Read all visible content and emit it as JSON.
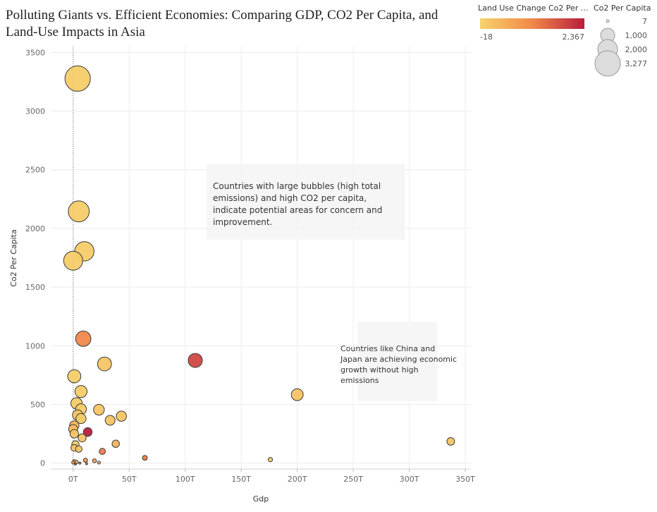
{
  "chart_data": {
    "type": "scatter",
    "title_lines": [
      "Polluting Giants vs. Efficient Economies: Comparing GDP, CO2 Per Capita, and",
      "Land-Use Impacts in Asia"
    ],
    "xlabel": "Gdp",
    "ylabel": "Co2 Per Capita",
    "xlim": [
      -20,
      355
    ],
    "ylim": [
      -50,
      3550
    ],
    "x_ticks": [
      0,
      50,
      100,
      150,
      200,
      250,
      300,
      350
    ],
    "x_tick_labels": [
      "0T",
      "50T",
      "100T",
      "150T",
      "200T",
      "250T",
      "300T",
      "350T"
    ],
    "y_ticks": [
      0,
      500,
      1000,
      1500,
      2000,
      2500,
      3000,
      3500
    ],
    "y_tick_labels": [
      "0",
      "500",
      "1000",
      "1500",
      "2000",
      "2500",
      "3000",
      "3500"
    ],
    "grid": true,
    "reference_line_x": 0,
    "color_legend": {
      "title": "Land Use Change Co2 Per ...",
      "min_label": "-18",
      "max_label": "2,367",
      "min_color": "#f6d36b",
      "mid_color": "#f1884a",
      "max_color": "#b81d3c"
    },
    "size_legend": {
      "title": "Co2 Per Capita",
      "labels": [
        "7",
        "1,000",
        "2,000",
        "3,277"
      ],
      "values": [
        7,
        1000,
        2000,
        3277
      ]
    },
    "points": [
      {
        "x": 4,
        "y": 3277,
        "c": 0.05
      },
      {
        "x": 5,
        "y": 2145,
        "c": 0.05
      },
      {
        "x": 10,
        "y": 1805,
        "c": 0.05
      },
      {
        "x": 0,
        "y": 1725,
        "c": 0.05
      },
      {
        "x": 9,
        "y": 1060,
        "c": 0.5
      },
      {
        "x": 28,
        "y": 845,
        "c": 0.1
      },
      {
        "x": 109,
        "y": 875,
        "c": 0.8
      },
      {
        "x": 1,
        "y": 740,
        "c": 0.05
      },
      {
        "x": 7,
        "y": 610,
        "c": 0.05
      },
      {
        "x": 200,
        "y": 583,
        "c": 0.1
      },
      {
        "x": 3,
        "y": 510,
        "c": 0.05
      },
      {
        "x": 7,
        "y": 460,
        "c": 0.05
      },
      {
        "x": 23,
        "y": 455,
        "c": 0.1
      },
      {
        "x": 4,
        "y": 410,
        "c": 0.1
      },
      {
        "x": 43,
        "y": 400,
        "c": 0.1
      },
      {
        "x": 7,
        "y": 380,
        "c": 0.05
      },
      {
        "x": 33,
        "y": 365,
        "c": 0.1
      },
      {
        "x": 1,
        "y": 320,
        "c": 0.2
      },
      {
        "x": 0,
        "y": 290,
        "c": 0.15
      },
      {
        "x": 13,
        "y": 265,
        "c": 1.0
      },
      {
        "x": 1,
        "y": 250,
        "c": 0.1
      },
      {
        "x": 8,
        "y": 215,
        "c": 0.1
      },
      {
        "x": 337,
        "y": 185,
        "c": 0.1
      },
      {
        "x": 2,
        "y": 160,
        "c": 0.05
      },
      {
        "x": 38,
        "y": 165,
        "c": 0.2
      },
      {
        "x": 1,
        "y": 130,
        "c": 0.1
      },
      {
        "x": 5,
        "y": 120,
        "c": 0.1
      },
      {
        "x": 26,
        "y": 100,
        "c": 0.55
      },
      {
        "x": 64,
        "y": 45,
        "c": 0.55
      },
      {
        "x": 176,
        "y": 30,
        "c": 0.05
      },
      {
        "x": 11,
        "y": 25,
        "c": 0.4
      },
      {
        "x": 19,
        "y": 20,
        "c": 0.3
      },
      {
        "x": 23,
        "y": 5,
        "c": 0.3
      },
      {
        "x": 1,
        "y": 15,
        "c": 0.2
      },
      {
        "x": 3,
        "y": 10,
        "c": 0.2
      },
      {
        "x": 6,
        "y": 0,
        "c": 0.6
      },
      {
        "x": 0,
        "y": 5,
        "c": 0.3
      },
      {
        "x": 12,
        "y": -5,
        "c": 0.4
      },
      {
        "x": 2,
        "y": -8,
        "c": 0.7
      }
    ],
    "annotations": [
      {
        "lines": [
          "Countries with large bubbles (high total",
          "emissions) and high CO2 per capita,",
          "indicate potential areas for concern and",
          "improvement."
        ]
      },
      {
        "lines": [
          "Countries like China and",
          "Japan are achieving economic",
          "growth without high",
          "emissions"
        ]
      }
    ]
  }
}
